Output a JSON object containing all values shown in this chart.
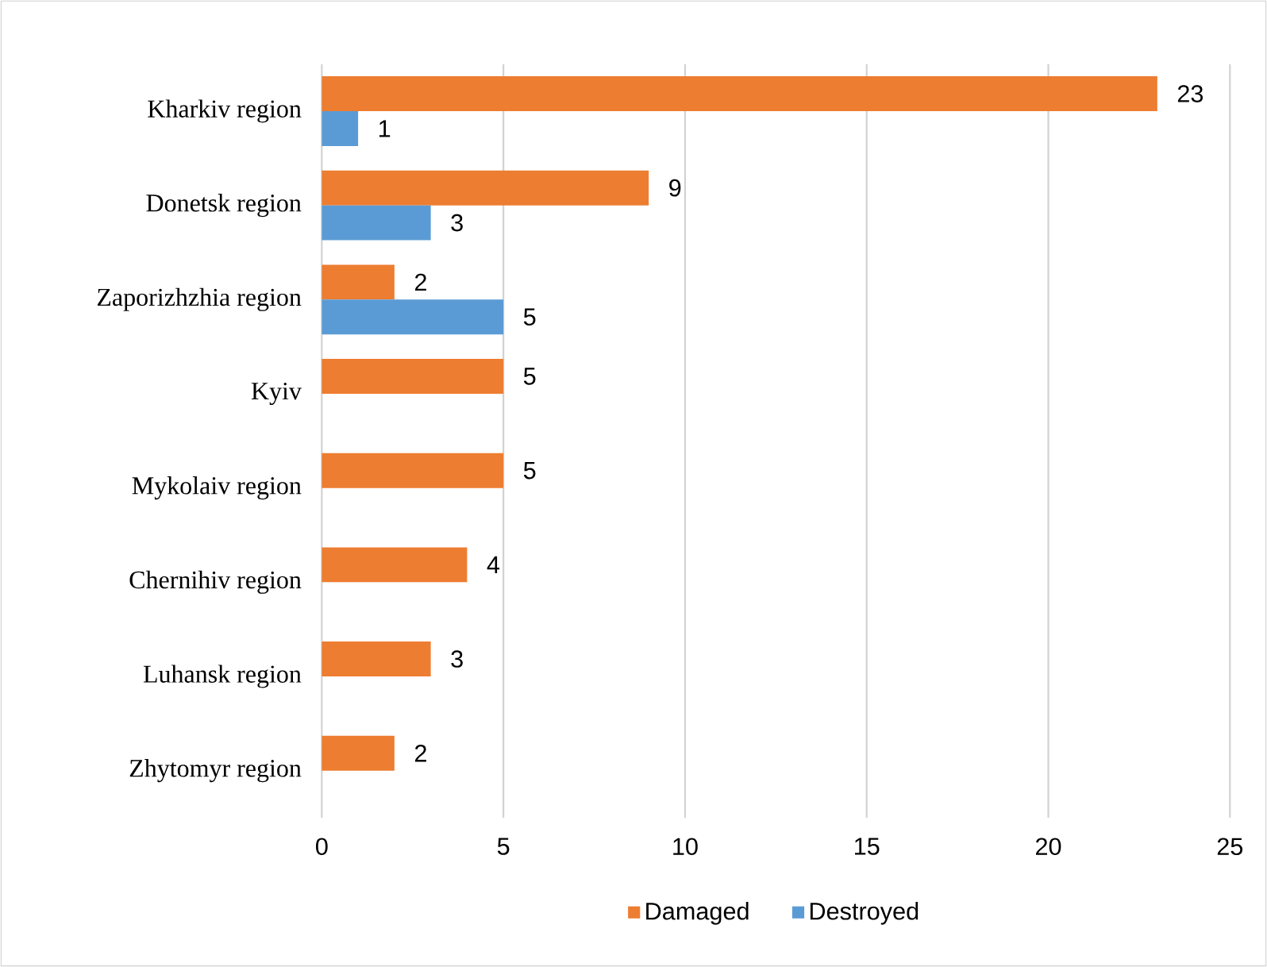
{
  "chart_data": {
    "type": "bar",
    "orientation": "horizontal",
    "categories": [
      "Kharkiv region",
      "Donetsk region",
      "Zaporizhzhia region",
      "Kyiv",
      "Mykolaiv region",
      "Chernihiv region",
      "Luhansk region",
      "Zhytomyr region"
    ],
    "series": [
      {
        "name": "Damaged",
        "color": "#ed7d31",
        "values": [
          23,
          9,
          2,
          5,
          5,
          4,
          3,
          2
        ]
      },
      {
        "name": "Destroyed",
        "color": "#5b9bd5",
        "values": [
          1,
          3,
          5,
          null,
          null,
          null,
          null,
          null
        ]
      }
    ],
    "xlim": [
      0,
      25
    ],
    "xticks": [
      0,
      5,
      10,
      15,
      20,
      25
    ],
    "grid": "x",
    "legend": "bottom",
    "data_labels": true
  }
}
